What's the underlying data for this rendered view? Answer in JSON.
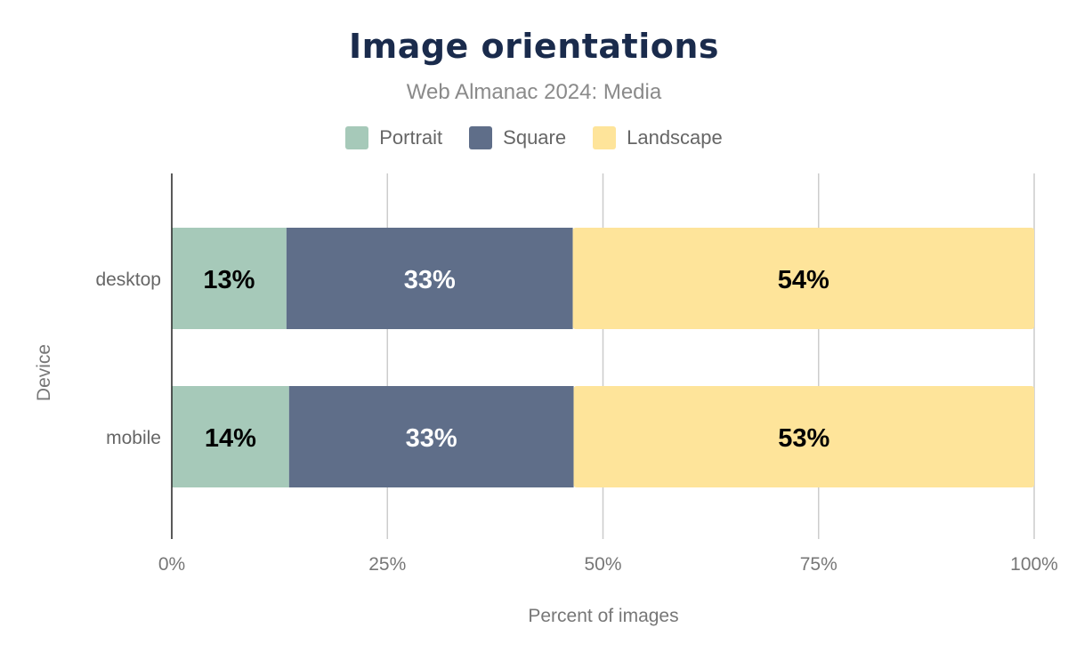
{
  "chart_data": {
    "type": "bar",
    "stacked": true,
    "orientation": "horizontal",
    "title": "Image orientations",
    "subtitle": "Web Almanac 2024: Media",
    "xlabel": "Percent of images",
    "ylabel": "Device",
    "xlim": [
      0,
      100
    ],
    "xticks": [
      "0%",
      "25%",
      "50%",
      "75%",
      "100%"
    ],
    "grid": true,
    "legend_position": "top",
    "categories": [
      "desktop",
      "mobile"
    ],
    "series": [
      {
        "name": "Portrait",
        "color": "#a6c9b9",
        "label_color": "#000000",
        "values": [
          13.3,
          13.6
        ]
      },
      {
        "name": "Square",
        "color": "#5f6e89",
        "label_color": "#ffffff",
        "values": [
          33.2,
          33.0
        ]
      },
      {
        "name": "Landscape",
        "color": "#fee49a",
        "label_color": "#000000",
        "values": [
          53.5,
          53.4
        ]
      }
    ]
  }
}
